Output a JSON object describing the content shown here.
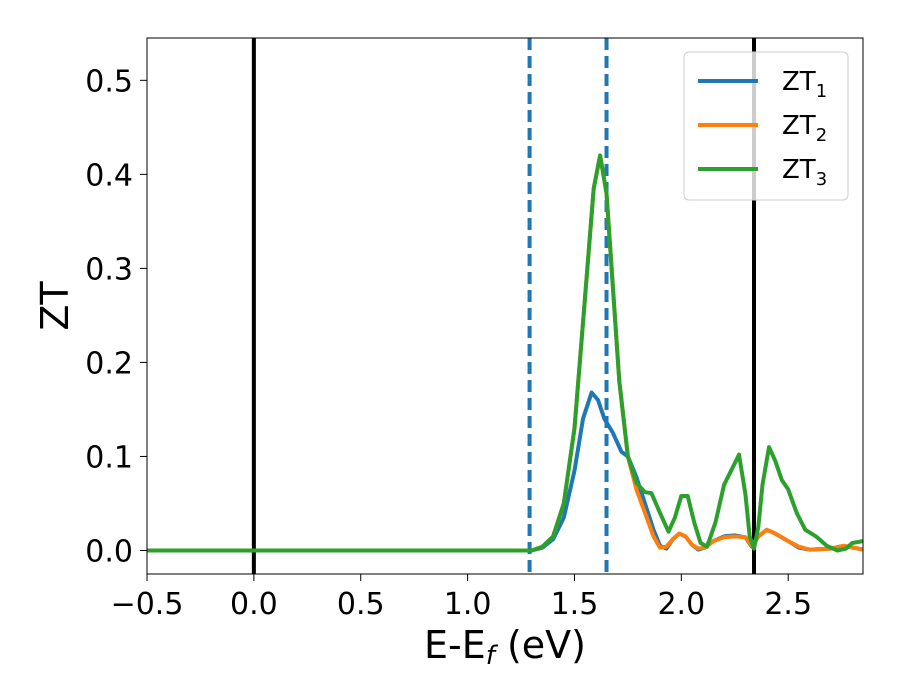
{
  "chart_data": {
    "type": "line",
    "title": "",
    "xlabel": "E-E",
    "xlabel_sub": "f",
    "xlabel_unit": " (eV)",
    "ylabel": "ZT",
    "xlim": [
      -0.5,
      2.85
    ],
    "ylim": [
      -0.025,
      0.545
    ],
    "grid": false,
    "legend_position": "top-right",
    "x_ticks": [
      -0.5,
      0.0,
      0.5,
      1.0,
      1.5,
      2.0,
      2.5
    ],
    "x_tick_labels": [
      "−0.5",
      "0.0",
      "0.5",
      "1.0",
      "1.5",
      "2.0",
      "2.5"
    ],
    "y_ticks": [
      0.0,
      0.1,
      0.2,
      0.3,
      0.4,
      0.5
    ],
    "y_tick_labels": [
      "0.0",
      "0.1",
      "0.2",
      "0.3",
      "0.4",
      "0.5"
    ],
    "reference_lines": [
      {
        "x": 0.0,
        "style": "solid",
        "color": "#000000"
      },
      {
        "x": 2.34,
        "style": "solid",
        "color": "#000000"
      },
      {
        "x": 1.29,
        "style": "dashed",
        "color": "#1f77b4"
      },
      {
        "x": 1.65,
        "style": "dashed",
        "color": "#1f77b4"
      }
    ],
    "series": [
      {
        "name": "ZT",
        "name_sub": "1",
        "color": "#1f77b4",
        "points": [
          [
            -0.5,
            0
          ],
          [
            1.25,
            0
          ],
          [
            1.3,
            0
          ],
          [
            1.35,
            0.003
          ],
          [
            1.4,
            0.012
          ],
          [
            1.45,
            0.035
          ],
          [
            1.5,
            0.085
          ],
          [
            1.54,
            0.14
          ],
          [
            1.58,
            0.168
          ],
          [
            1.61,
            0.16
          ],
          [
            1.64,
            0.14
          ],
          [
            1.68,
            0.125
          ],
          [
            1.72,
            0.105
          ],
          [
            1.75,
            0.1
          ],
          [
            1.79,
            0.078
          ],
          [
            1.83,
            0.05
          ],
          [
            1.87,
            0.022
          ],
          [
            1.9,
            0.005
          ],
          [
            1.93,
            0.002
          ],
          [
            1.96,
            0.012
          ],
          [
            1.99,
            0.018
          ],
          [
            2.02,
            0.015
          ],
          [
            2.05,
            0.006
          ],
          [
            2.08,
            0.001
          ],
          [
            2.11,
            0.003
          ],
          [
            2.15,
            0.01
          ],
          [
            2.2,
            0.015
          ],
          [
            2.25,
            0.016
          ],
          [
            2.3,
            0.014
          ],
          [
            2.33,
            0.004
          ],
          [
            2.36,
            0.015
          ],
          [
            2.4,
            0.022
          ],
          [
            2.44,
            0.018
          ],
          [
            2.5,
            0.01
          ],
          [
            2.55,
            0.003
          ],
          [
            2.6,
            0.001
          ],
          [
            2.7,
            0.002
          ],
          [
            2.76,
            0.005
          ],
          [
            2.85,
            0.001
          ]
        ]
      },
      {
        "name": "ZT",
        "name_sub": "2",
        "color": "#ff7f0e",
        "points": [
          [
            -0.5,
            0
          ],
          [
            1.25,
            0
          ],
          [
            1.3,
            0
          ],
          [
            1.35,
            0.004
          ],
          [
            1.4,
            0.015
          ],
          [
            1.45,
            0.05
          ],
          [
            1.5,
            0.13
          ],
          [
            1.55,
            0.27
          ],
          [
            1.59,
            0.385
          ],
          [
            1.62,
            0.42
          ],
          [
            1.65,
            0.38
          ],
          [
            1.68,
            0.28
          ],
          [
            1.71,
            0.18
          ],
          [
            1.75,
            0.1
          ],
          [
            1.79,
            0.065
          ],
          [
            1.83,
            0.04
          ],
          [
            1.87,
            0.015
          ],
          [
            1.9,
            0.003
          ],
          [
            1.93,
            0.004
          ],
          [
            1.96,
            0.012
          ],
          [
            1.99,
            0.018
          ],
          [
            2.02,
            0.015
          ],
          [
            2.05,
            0.006
          ],
          [
            2.08,
            0.002
          ],
          [
            2.11,
            0.003
          ],
          [
            2.15,
            0.01
          ],
          [
            2.2,
            0.014
          ],
          [
            2.25,
            0.015
          ],
          [
            2.3,
            0.014
          ],
          [
            2.33,
            0.005
          ],
          [
            2.36,
            0.015
          ],
          [
            2.4,
            0.022
          ],
          [
            2.44,
            0.018
          ],
          [
            2.5,
            0.01
          ],
          [
            2.55,
            0.004
          ],
          [
            2.6,
            0.001
          ],
          [
            2.7,
            0.002
          ],
          [
            2.76,
            0.005
          ],
          [
            2.85,
            0.001
          ]
        ]
      },
      {
        "name": "ZT",
        "name_sub": "3",
        "color": "#2ca02c",
        "points": [
          [
            -0.5,
            0
          ],
          [
            1.25,
            0
          ],
          [
            1.3,
            0
          ],
          [
            1.35,
            0.004
          ],
          [
            1.4,
            0.015
          ],
          [
            1.45,
            0.05
          ],
          [
            1.5,
            0.13
          ],
          [
            1.55,
            0.27
          ],
          [
            1.59,
            0.385
          ],
          [
            1.62,
            0.42
          ],
          [
            1.65,
            0.38
          ],
          [
            1.68,
            0.28
          ],
          [
            1.71,
            0.18
          ],
          [
            1.75,
            0.1
          ],
          [
            1.79,
            0.072
          ],
          [
            1.83,
            0.062
          ],
          [
            1.86,
            0.061
          ],
          [
            1.9,
            0.04
          ],
          [
            1.94,
            0.02
          ],
          [
            1.97,
            0.035
          ],
          [
            2.0,
            0.058
          ],
          [
            2.03,
            0.058
          ],
          [
            2.06,
            0.03
          ],
          [
            2.09,
            0.008
          ],
          [
            2.12,
            0.004
          ],
          [
            2.16,
            0.03
          ],
          [
            2.2,
            0.07
          ],
          [
            2.24,
            0.088
          ],
          [
            2.27,
            0.102
          ],
          [
            2.3,
            0.06
          ],
          [
            2.32,
            0.015
          ],
          [
            2.34,
            0.002
          ],
          [
            2.36,
            0.025
          ],
          [
            2.38,
            0.07
          ],
          [
            2.41,
            0.11
          ],
          [
            2.44,
            0.095
          ],
          [
            2.47,
            0.075
          ],
          [
            2.5,
            0.065
          ],
          [
            2.54,
            0.04
          ],
          [
            2.58,
            0.022
          ],
          [
            2.63,
            0.015
          ],
          [
            2.68,
            0.005
          ],
          [
            2.73,
            0.0
          ],
          [
            2.77,
            0.002
          ],
          [
            2.8,
            0.008
          ],
          [
            2.85,
            0.01
          ]
        ]
      }
    ]
  }
}
